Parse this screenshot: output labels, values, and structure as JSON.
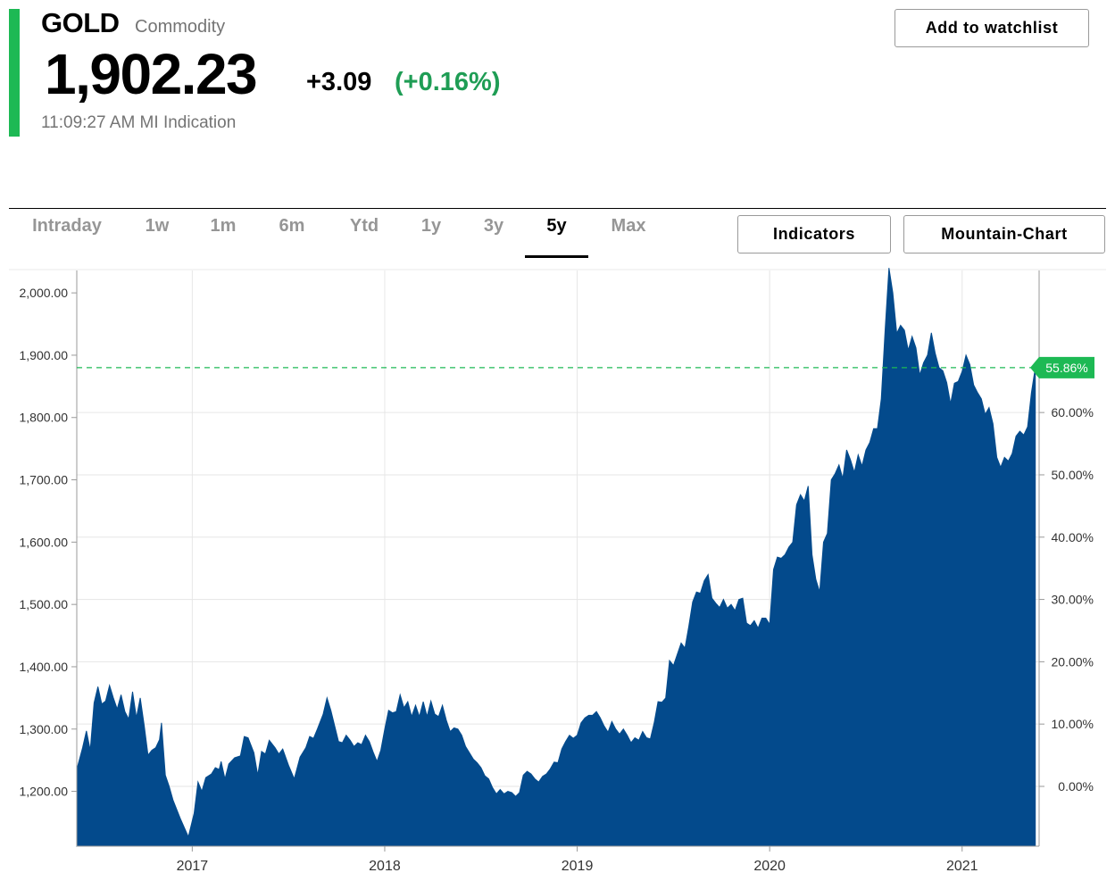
{
  "header": {
    "symbol": "GOLD",
    "asset_type": "Commodity",
    "price": "1,902.23",
    "change_abs": "+3.09",
    "change_pct": "(+0.16%)",
    "timestamp": "11:09:27 AM MI Indication",
    "watchlist_label": "Add to watchlist"
  },
  "tabs": [
    {
      "label": "Intraday",
      "active": false
    },
    {
      "label": "1w",
      "active": false
    },
    {
      "label": "1m",
      "active": false
    },
    {
      "label": "6m",
      "active": false
    },
    {
      "label": "Ytd",
      "active": false
    },
    {
      "label": "1y",
      "active": false
    },
    {
      "label": "3y",
      "active": false
    },
    {
      "label": "5y",
      "active": true
    },
    {
      "label": "Max",
      "active": false
    }
  ],
  "toolbar": {
    "indicators_label": "Indicators",
    "chart_type_label": "Mountain-Chart"
  },
  "colors": {
    "accent": "#1db954",
    "area": "#034a8c",
    "positive": "#1f9d55",
    "grid": "#e6e6e6"
  },
  "chart_data": {
    "type": "area",
    "x_range": [
      "2016-06",
      "2021-05"
    ],
    "x_ticks": [
      {
        "label": "2017",
        "x": 2017.0
      },
      {
        "label": "2018",
        "x": 2018.0
      },
      {
        "label": "2019",
        "x": 2019.0
      },
      {
        "label": "2020",
        "x": 2020.0
      },
      {
        "label": "2021",
        "x": 2021.0
      }
    ],
    "ylim": [
      1112,
      2036
    ],
    "y_ticks": [
      {
        "label": "1,200.00",
        "value": 1200
      },
      {
        "label": "1,300.00",
        "value": 1300
      },
      {
        "label": "1,400.00",
        "value": 1400
      },
      {
        "label": "1,500.00",
        "value": 1500
      },
      {
        "label": "1,600.00",
        "value": 1600
      },
      {
        "label": "1,700.00",
        "value": 1700
      },
      {
        "label": "1,800.00",
        "value": 1800
      },
      {
        "label": "1,900.00",
        "value": 1900
      },
      {
        "label": "2,000.00",
        "value": 2000
      }
    ],
    "y2_ticks": [
      {
        "label": "0.00%",
        "value": 0
      },
      {
        "label": "10.00%",
        "value": 10
      },
      {
        "label": "20.00%",
        "value": 20
      },
      {
        "label": "30.00%",
        "value": 30
      },
      {
        "label": "40.00%",
        "value": 40
      },
      {
        "label": "50.00%",
        "value": 50
      },
      {
        "label": "60.00%",
        "value": 60
      }
    ],
    "current_pct": 55.86,
    "current_label": "55.86%",
    "current_price": 1880,
    "series": [
      {
        "values": [
          [
            2016.4,
            1235
          ],
          [
            2016.43,
            1270
          ],
          [
            2016.45,
            1297
          ],
          [
            2016.47,
            1266
          ],
          [
            2016.49,
            1342
          ],
          [
            2016.51,
            1368
          ],
          [
            2016.53,
            1340
          ],
          [
            2016.55,
            1345
          ],
          [
            2016.57,
            1370
          ],
          [
            2016.59,
            1350
          ],
          [
            2016.61,
            1332
          ],
          [
            2016.63,
            1355
          ],
          [
            2016.65,
            1328
          ],
          [
            2016.67,
            1316
          ],
          [
            2016.69,
            1360
          ],
          [
            2016.71,
            1318
          ],
          [
            2016.73,
            1350
          ],
          [
            2016.75,
            1306
          ],
          [
            2016.77,
            1258
          ],
          [
            2016.79,
            1266
          ],
          [
            2016.81,
            1270
          ],
          [
            2016.83,
            1283
          ],
          [
            2016.84,
            1310
          ],
          [
            2016.86,
            1226
          ],
          [
            2016.88,
            1208
          ],
          [
            2016.9,
            1186
          ],
          [
            2016.94,
            1155
          ],
          [
            2016.98,
            1127
          ],
          [
            2017.01,
            1165
          ],
          [
            2017.03,
            1215
          ],
          [
            2017.05,
            1200
          ],
          [
            2017.07,
            1222
          ],
          [
            2017.1,
            1228
          ],
          [
            2017.12,
            1238
          ],
          [
            2017.14,
            1235
          ],
          [
            2017.15,
            1248
          ],
          [
            2017.17,
            1220
          ],
          [
            2017.19,
            1244
          ],
          [
            2017.22,
            1254
          ],
          [
            2017.25,
            1257
          ],
          [
            2017.27,
            1288
          ],
          [
            2017.29,
            1286
          ],
          [
            2017.32,
            1262
          ],
          [
            2017.34,
            1226
          ],
          [
            2017.36,
            1264
          ],
          [
            2017.38,
            1260
          ],
          [
            2017.4,
            1282
          ],
          [
            2017.43,
            1270
          ],
          [
            2017.45,
            1260
          ],
          [
            2017.47,
            1268
          ],
          [
            2017.5,
            1242
          ],
          [
            2017.53,
            1220
          ],
          [
            2017.56,
            1255
          ],
          [
            2017.59,
            1270
          ],
          [
            2017.61,
            1288
          ],
          [
            2017.63,
            1285
          ],
          [
            2017.65,
            1300
          ],
          [
            2017.68,
            1324
          ],
          [
            2017.7,
            1350
          ],
          [
            2017.72,
            1330
          ],
          [
            2017.74,
            1305
          ],
          [
            2017.76,
            1280
          ],
          [
            2017.78,
            1278
          ],
          [
            2017.8,
            1290
          ],
          [
            2017.82,
            1282
          ],
          [
            2017.84,
            1272
          ],
          [
            2017.86,
            1278
          ],
          [
            2017.88,
            1275
          ],
          [
            2017.9,
            1290
          ],
          [
            2017.92,
            1280
          ],
          [
            2017.94,
            1263
          ],
          [
            2017.96,
            1248
          ],
          [
            2017.98,
            1266
          ],
          [
            2018.0,
            1300
          ],
          [
            2018.02,
            1330
          ],
          [
            2018.04,
            1326
          ],
          [
            2018.06,
            1328
          ],
          [
            2018.08,
            1355
          ],
          [
            2018.1,
            1334
          ],
          [
            2018.12,
            1344
          ],
          [
            2018.14,
            1320
          ],
          [
            2018.16,
            1338
          ],
          [
            2018.18,
            1320
          ],
          [
            2018.2,
            1344
          ],
          [
            2018.22,
            1320
          ],
          [
            2018.24,
            1345
          ],
          [
            2018.26,
            1324
          ],
          [
            2018.28,
            1320
          ],
          [
            2018.3,
            1338
          ],
          [
            2018.32,
            1314
          ],
          [
            2018.34,
            1296
          ],
          [
            2018.36,
            1302
          ],
          [
            2018.38,
            1300
          ],
          [
            2018.4,
            1290
          ],
          [
            2018.42,
            1272
          ],
          [
            2018.44,
            1262
          ],
          [
            2018.46,
            1252
          ],
          [
            2018.48,
            1246
          ],
          [
            2018.5,
            1238
          ],
          [
            2018.52,
            1225
          ],
          [
            2018.54,
            1220
          ],
          [
            2018.56,
            1206
          ],
          [
            2018.58,
            1196
          ],
          [
            2018.6,
            1203
          ],
          [
            2018.62,
            1196
          ],
          [
            2018.64,
            1200
          ],
          [
            2018.66,
            1198
          ],
          [
            2018.68,
            1192
          ],
          [
            2018.7,
            1198
          ],
          [
            2018.72,
            1226
          ],
          [
            2018.74,
            1232
          ],
          [
            2018.76,
            1228
          ],
          [
            2018.78,
            1220
          ],
          [
            2018.8,
            1215
          ],
          [
            2018.82,
            1224
          ],
          [
            2018.84,
            1228
          ],
          [
            2018.86,
            1236
          ],
          [
            2018.88,
            1247
          ],
          [
            2018.9,
            1246
          ],
          [
            2018.92,
            1268
          ],
          [
            2018.94,
            1280
          ],
          [
            2018.96,
            1290
          ],
          [
            2018.98,
            1285
          ],
          [
            2019.0,
            1290
          ],
          [
            2019.02,
            1310
          ],
          [
            2019.04,
            1318
          ],
          [
            2019.06,
            1322
          ],
          [
            2019.08,
            1322
          ],
          [
            2019.1,
            1328
          ],
          [
            2019.12,
            1318
          ],
          [
            2019.14,
            1305
          ],
          [
            2019.16,
            1295
          ],
          [
            2019.18,
            1312
          ],
          [
            2019.2,
            1300
          ],
          [
            2019.22,
            1292
          ],
          [
            2019.24,
            1300
          ],
          [
            2019.26,
            1290
          ],
          [
            2019.28,
            1278
          ],
          [
            2019.3,
            1286
          ],
          [
            2019.32,
            1282
          ],
          [
            2019.34,
            1296
          ],
          [
            2019.36,
            1286
          ],
          [
            2019.38,
            1284
          ],
          [
            2019.4,
            1310
          ],
          [
            2019.42,
            1344
          ],
          [
            2019.44,
            1343
          ],
          [
            2019.46,
            1350
          ],
          [
            2019.48,
            1410
          ],
          [
            2019.5,
            1402
          ],
          [
            2019.52,
            1420
          ],
          [
            2019.54,
            1438
          ],
          [
            2019.56,
            1430
          ],
          [
            2019.58,
            1465
          ],
          [
            2019.6,
            1504
          ],
          [
            2019.62,
            1520
          ],
          [
            2019.64,
            1518
          ],
          [
            2019.66,
            1538
          ],
          [
            2019.68,
            1548
          ],
          [
            2019.7,
            1510
          ],
          [
            2019.72,
            1502
          ],
          [
            2019.74,
            1495
          ],
          [
            2019.76,
            1508
          ],
          [
            2019.78,
            1494
          ],
          [
            2019.8,
            1500
          ],
          [
            2019.82,
            1490
          ],
          [
            2019.84,
            1508
          ],
          [
            2019.86,
            1510
          ],
          [
            2019.88,
            1470
          ],
          [
            2019.9,
            1466
          ],
          [
            2019.92,
            1474
          ],
          [
            2019.94,
            1462
          ],
          [
            2019.96,
            1478
          ],
          [
            2019.98,
            1478
          ],
          [
            2020.0,
            1468
          ],
          [
            2020.02,
            1556
          ],
          [
            2020.04,
            1576
          ],
          [
            2020.06,
            1574
          ],
          [
            2020.08,
            1580
          ],
          [
            2020.1,
            1592
          ],
          [
            2020.12,
            1600
          ],
          [
            2020.14,
            1660
          ],
          [
            2020.16,
            1676
          ],
          [
            2020.18,
            1666
          ],
          [
            2020.2,
            1690
          ],
          [
            2020.22,
            1580
          ],
          [
            2020.24,
            1540
          ],
          [
            2020.26,
            1520
          ],
          [
            2020.28,
            1600
          ],
          [
            2020.3,
            1614
          ],
          [
            2020.32,
            1700
          ],
          [
            2020.34,
            1710
          ],
          [
            2020.36,
            1724
          ],
          [
            2020.38,
            1702
          ],
          [
            2020.4,
            1748
          ],
          [
            2020.42,
            1732
          ],
          [
            2020.44,
            1712
          ],
          [
            2020.46,
            1740
          ],
          [
            2020.48,
            1722
          ],
          [
            2020.5,
            1748
          ],
          [
            2020.52,
            1760
          ],
          [
            2020.54,
            1782
          ],
          [
            2020.56,
            1782
          ],
          [
            2020.58,
            1830
          ],
          [
            2020.6,
            1940
          ],
          [
            2020.62,
            2040
          ],
          [
            2020.64,
            2000
          ],
          [
            2020.66,
            1935
          ],
          [
            2020.68,
            1948
          ],
          [
            2020.7,
            1940
          ],
          [
            2020.72,
            1908
          ],
          [
            2020.74,
            1930
          ],
          [
            2020.76,
            1912
          ],
          [
            2020.78,
            1868
          ],
          [
            2020.8,
            1888
          ],
          [
            2020.82,
            1900
          ],
          [
            2020.84,
            1936
          ],
          [
            2020.86,
            1903
          ],
          [
            2020.88,
            1880
          ],
          [
            2020.9,
            1875
          ],
          [
            2020.92,
            1856
          ],
          [
            2020.94,
            1822
          ],
          [
            2020.96,
            1855
          ],
          [
            2020.98,
            1858
          ],
          [
            2021.0,
            1874
          ],
          [
            2021.02,
            1900
          ],
          [
            2021.04,
            1885
          ],
          [
            2021.06,
            1852
          ],
          [
            2021.08,
            1840
          ],
          [
            2021.1,
            1830
          ],
          [
            2021.12,
            1805
          ],
          [
            2021.14,
            1816
          ],
          [
            2021.16,
            1790
          ],
          [
            2021.18,
            1736
          ],
          [
            2021.2,
            1720
          ],
          [
            2021.22,
            1736
          ],
          [
            2021.24,
            1730
          ],
          [
            2021.26,
            1742
          ],
          [
            2021.28,
            1770
          ],
          [
            2021.3,
            1778
          ],
          [
            2021.32,
            1772
          ],
          [
            2021.34,
            1785
          ],
          [
            2021.36,
            1840
          ],
          [
            2021.38,
            1880
          ]
        ]
      }
    ]
  }
}
